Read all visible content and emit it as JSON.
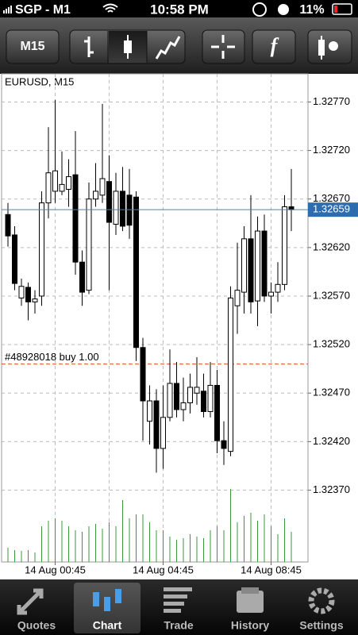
{
  "status_bar": {
    "carrier": "SGP - M1",
    "time": "10:58 PM",
    "battery": "11%"
  },
  "toolbar": {
    "timeframe": "M15",
    "function": "f"
  },
  "tabs": [
    "Quotes",
    "Chart",
    "Trade",
    "History",
    "Settings"
  ],
  "chart_data": {
    "type": "candlestick",
    "title": "EURUSD, M15",
    "categories": [
      null,
      null,
      null,
      null,
      null,
      null,
      null,
      "14 Aug 00:45",
      null,
      null,
      null,
      null,
      null,
      null,
      null,
      null,
      null,
      null,
      null,
      null,
      null,
      null,
      null,
      "14 Aug 04:45",
      null,
      null,
      null,
      null,
      null,
      null,
      null,
      null,
      null,
      null,
      null,
      null,
      null,
      null,
      null,
      "14 Aug 08:45",
      null,
      null,
      null
    ],
    "open": [
      1.32654,
      1.32633,
      1.32568,
      1.32579,
      1.32564,
      1.3257,
      1.32666,
      1.32678,
      1.32678,
      1.3268,
      1.32695,
      1.32605,
      1.32576,
      1.3267,
      1.32674,
      1.32688,
      1.32644,
      1.32678,
      1.32674,
      1.32672,
      1.32517,
      1.32441,
      1.32462,
      1.32413,
      1.32445,
      1.3248,
      1.32453,
      1.3246,
      1.3247,
      1.32472,
      1.32451,
      1.32478,
      1.32421,
      1.3241,
      1.3256,
      1.32574,
      1.32629,
      1.32565,
      1.32637,
      1.3257,
      1.32574,
      1.32582,
      1.32662
    ],
    "high": [
      1.32666,
      1.32642,
      1.32588,
      1.32584,
      1.32576,
      1.32678,
      1.32744,
      1.32772,
      1.32719,
      1.32711,
      1.3274,
      1.32617,
      1.32687,
      1.32707,
      1.32768,
      1.32715,
      1.32697,
      1.32703,
      1.32701,
      1.32678,
      1.32527,
      1.32478,
      1.32474,
      1.32478,
      1.32515,
      1.32502,
      1.32486,
      1.3249,
      1.32507,
      1.3249,
      1.32502,
      1.32494,
      1.32441,
      1.3258,
      1.32625,
      1.32642,
      1.32674,
      1.32652,
      1.32654,
      1.32584,
      1.32605,
      1.32674,
      1.32701
    ],
    "low": [
      1.32621,
      1.32576,
      1.3256,
      1.32545,
      1.32552,
      1.3256,
      1.3265,
      1.32666,
      1.32674,
      1.32662,
      1.32592,
      1.3256,
      1.32572,
      1.32662,
      1.32666,
      1.32576,
      1.32633,
      1.32637,
      1.32629,
      1.32503,
      1.32421,
      1.32417,
      1.32388,
      1.32392,
      1.32441,
      1.32445,
      1.32441,
      1.32449,
      1.32458,
      1.32445,
      1.32445,
      1.32408,
      1.32396,
      1.32405,
      1.32531,
      1.32552,
      1.32552,
      1.32539,
      1.32564,
      1.32552,
      1.32564,
      1.32576,
      1.32637
    ],
    "close": [
      1.32632,
      1.32583,
      1.3258,
      1.32564,
      1.32567,
      1.32666,
      1.32697,
      1.32699,
      1.32685,
      1.32693,
      1.32605,
      1.32574,
      1.3267,
      1.32678,
      1.32691,
      1.32646,
      1.32678,
      1.32642,
      1.32643,
      1.32517,
      1.32462,
      1.32462,
      1.32413,
      1.32445,
      1.3248,
      1.32453,
      1.3246,
      1.32476,
      1.32476,
      1.32451,
      1.32478,
      1.32421,
      1.32413,
      1.32568,
      1.32576,
      1.32629,
      1.32564,
      1.32637,
      1.3257,
      1.32574,
      1.32582,
      1.32662,
      1.32659
    ],
    "volumes": [
      18,
      15,
      14,
      15,
      12,
      45,
      52,
      55,
      52,
      45,
      40,
      38,
      45,
      48,
      42,
      50,
      45,
      78,
      55,
      60,
      60,
      50,
      40,
      40,
      32,
      28,
      30,
      35,
      32,
      30,
      40,
      45,
      40,
      92,
      50,
      58,
      62,
      52,
      60,
      45,
      35,
      55,
      38
    ],
    "up_color": "#ffffff",
    "down_color": "#000000",
    "volume_color": "#3a9a3a",
    "ylim": [
      1.32296,
      1.32799
    ],
    "yticks": [
      {
        "value": 1.3277,
        "label": "1.32770"
      },
      {
        "value": 1.3272,
        "label": "1.32720"
      },
      {
        "value": 1.3267,
        "label": "1.32670"
      },
      {
        "value": 1.3262,
        "label": "1.32620"
      },
      {
        "value": 1.3257,
        "label": "1.32570"
      },
      {
        "value": 1.3252,
        "label": "1.32520"
      },
      {
        "value": 1.3247,
        "label": "1.32470"
      },
      {
        "value": 1.3242,
        "label": "1.32420"
      },
      {
        "value": 1.3237,
        "label": "1.32370"
      }
    ],
    "current_price": {
      "value": 1.32659,
      "label": "1.32659"
    },
    "order": {
      "label": "#48928018 buy 1.00",
      "price": 1.325
    },
    "grid": true
  }
}
